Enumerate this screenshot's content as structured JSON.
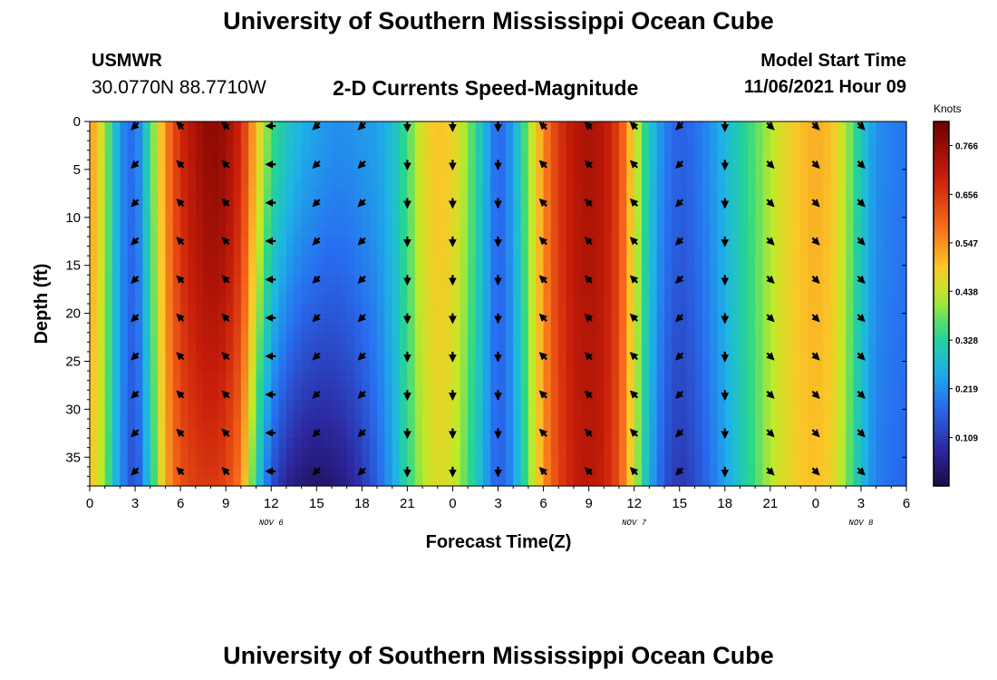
{
  "header": {
    "title": "University of Southern Mississippi Ocean Cube",
    "station": "USMWR",
    "coords": "30.0770N  88.7710W",
    "subtitle": "2-D Currents Speed-Magnitude",
    "start_label": "Model Start Time",
    "start_value": "11/06/2021 Hour 09"
  },
  "footer": {
    "title": "University of Southern Mississippi Ocean Cube"
  },
  "chart_data": {
    "type": "heatmap",
    "title": "2-D Currents Speed-Magnitude",
    "xlabel": "Forecast Time(Z)",
    "ylabel": "Depth (ft)",
    "x_tick_labels": [
      "0",
      "3",
      "6",
      "9",
      "12",
      "15",
      "18",
      "21",
      "0",
      "3",
      "6",
      "9",
      "12",
      "15",
      "18",
      "21",
      "0",
      "3",
      "6"
    ],
    "x_range_hours": [
      0,
      54
    ],
    "date_labels": [
      {
        "hour": 12,
        "label": "NOV 6"
      },
      {
        "hour": 36,
        "label": "NOV 7"
      },
      {
        "hour": 51,
        "label": "NOV 8"
      }
    ],
    "y_ticks": [
      0,
      5,
      10,
      15,
      20,
      25,
      30,
      35
    ],
    "ylim": [
      0,
      38
    ],
    "y_inverted": true,
    "colorbar": {
      "label": "Knots",
      "range": [
        0.0,
        0.82
      ],
      "ticks": [
        "0.766",
        "0.656",
        "0.547",
        "0.438",
        "0.328",
        "0.219",
        "0.109"
      ],
      "tick_values": [
        0.766,
        0.656,
        0.547,
        0.438,
        0.328,
        0.219,
        0.109
      ]
    },
    "speed_profile_hours": [
      0,
      1,
      2,
      3,
      4,
      5,
      6,
      7,
      8,
      9,
      10,
      11,
      12,
      13,
      14,
      15,
      16,
      17,
      18,
      19,
      20,
      21,
      22,
      23,
      24,
      25,
      26,
      27,
      28,
      29,
      30,
      31,
      32,
      33,
      34,
      35,
      36,
      37,
      38,
      39,
      40,
      41,
      42,
      43,
      44,
      45,
      46,
      47,
      48,
      49,
      50,
      51,
      52,
      53,
      54
    ],
    "speed_surface": [
      0.55,
      0.42,
      0.22,
      0.17,
      0.35,
      0.55,
      0.68,
      0.74,
      0.78,
      0.76,
      0.68,
      0.5,
      0.36,
      0.3,
      0.26,
      0.24,
      0.22,
      0.22,
      0.23,
      0.24,
      0.28,
      0.36,
      0.46,
      0.5,
      0.48,
      0.4,
      0.28,
      0.16,
      0.24,
      0.4,
      0.55,
      0.66,
      0.72,
      0.74,
      0.72,
      0.64,
      0.46,
      0.3,
      0.2,
      0.16,
      0.18,
      0.22,
      0.27,
      0.32,
      0.37,
      0.42,
      0.47,
      0.5,
      0.52,
      0.5,
      0.42,
      0.3,
      0.22,
      0.2,
      0.19
    ],
    "speed_bottom": [
      0.5,
      0.4,
      0.22,
      0.12,
      0.3,
      0.52,
      0.62,
      0.65,
      0.66,
      0.64,
      0.56,
      0.32,
      0.14,
      0.07,
      0.04,
      0.03,
      0.04,
      0.06,
      0.1,
      0.16,
      0.24,
      0.34,
      0.42,
      0.46,
      0.44,
      0.36,
      0.26,
      0.15,
      0.22,
      0.38,
      0.54,
      0.64,
      0.7,
      0.72,
      0.7,
      0.62,
      0.44,
      0.26,
      0.14,
      0.1,
      0.13,
      0.18,
      0.24,
      0.3,
      0.36,
      0.42,
      0.46,
      0.49,
      0.5,
      0.48,
      0.4,
      0.28,
      0.2,
      0.18,
      0.17
    ],
    "vectors": {
      "hours": [
        3,
        6,
        9,
        12,
        15,
        18,
        21,
        24,
        27,
        30,
        33,
        36,
        39,
        42,
        45,
        48,
        51
      ],
      "depths": [
        0,
        4,
        8,
        12,
        16,
        20,
        24,
        28,
        32,
        36
      ],
      "direction_deg_by_hour": [
        225,
        135,
        135,
        180,
        225,
        225,
        270,
        270,
        270,
        135,
        135,
        135,
        225,
        270,
        315,
        315,
        315
      ]
    }
  }
}
